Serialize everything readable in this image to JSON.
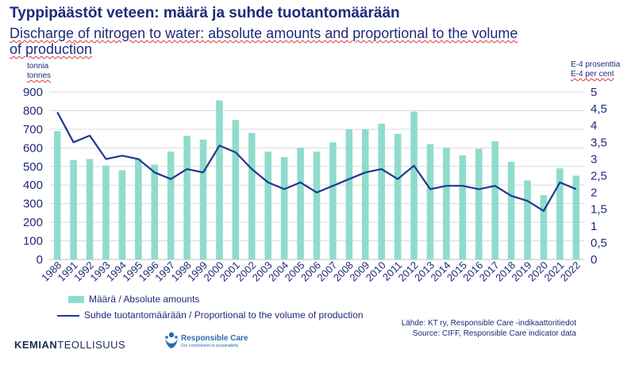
{
  "header": {
    "title": "Typpipäästöt veteen: määrä ja suhde tuotantomäärään",
    "subtitle_l1": "Discharge of nitrogen to water: absolute amounts and proportional to the volume",
    "subtitle_l2": "of production"
  },
  "units": {
    "left_fi": "tonnia",
    "left_en": "tonnes",
    "right_fi": "E-4 prosenttia",
    "right_en": "E-4 per cent"
  },
  "legend": {
    "bar": "Määrä / Absolute amounts",
    "line": "Suhde tuotantomäärään / Proportional to the volume of production"
  },
  "source": {
    "line1": "Lähde: KT ry, Responsible Care -indikaattoritiedot",
    "line2": "Source: CIFF, Responsible Care indicator data"
  },
  "footer": {
    "brand_bold": "KEMIAN",
    "brand_rest": "TEOLLISUUS",
    "rc_name": "Responsible Care",
    "rc_tag": "Our commitment to sustainability"
  },
  "chart_data": {
    "type": "bar",
    "categories": [
      "1988",
      "1991",
      "1992",
      "1993",
      "1994",
      "1995",
      "1996",
      "1997",
      "1998",
      "1999",
      "2000",
      "2001",
      "2002",
      "2003",
      "2004",
      "2005",
      "2006",
      "2007",
      "2008",
      "2009",
      "2010",
      "2011",
      "2012",
      "2013",
      "2014",
      "2015",
      "2016",
      "2017",
      "2018",
      "2019",
      "2020",
      "2021",
      "2022"
    ],
    "series": [
      {
        "name": "Määrä / Absolute amounts",
        "type": "bar",
        "axis": "left",
        "values": [
          690,
          535,
          540,
          505,
          480,
          540,
          510,
          580,
          665,
          645,
          855,
          750,
          680,
          580,
          550,
          600,
          580,
          630,
          700,
          700,
          730,
          675,
          795,
          620,
          600,
          560,
          595,
          635,
          525,
          425,
          345,
          490,
          450
        ]
      },
      {
        "name": "Suhde tuotantomäärään / Proportional to the volume of production",
        "type": "line",
        "axis": "right",
        "values": [
          4.4,
          3.5,
          3.7,
          3.0,
          3.1,
          3.0,
          2.6,
          2.4,
          2.7,
          2.6,
          3.4,
          3.2,
          2.7,
          2.3,
          2.1,
          2.3,
          2.0,
          2.2,
          2.4,
          2.6,
          2.7,
          2.4,
          2.8,
          2.1,
          2.2,
          2.2,
          2.1,
          2.2,
          1.9,
          1.75,
          1.45,
          2.3,
          2.1
        ]
      }
    ],
    "y_left": {
      "min": 0,
      "max": 900,
      "ticks": [
        0,
        100,
        200,
        300,
        400,
        500,
        600,
        700,
        800,
        900
      ]
    },
    "y_right": {
      "min": 0,
      "max": 5,
      "ticks": [
        "0",
        "0,5",
        "1",
        "1,5",
        "2",
        "2,5",
        "3",
        "3,5",
        "4",
        "4,5",
        "5"
      ]
    },
    "grid": true,
    "colors": {
      "bar": "#8fdccd",
      "line": "#1f3a8f",
      "grid": "#d9d9d9",
      "text": "#1f2a7a"
    }
  }
}
